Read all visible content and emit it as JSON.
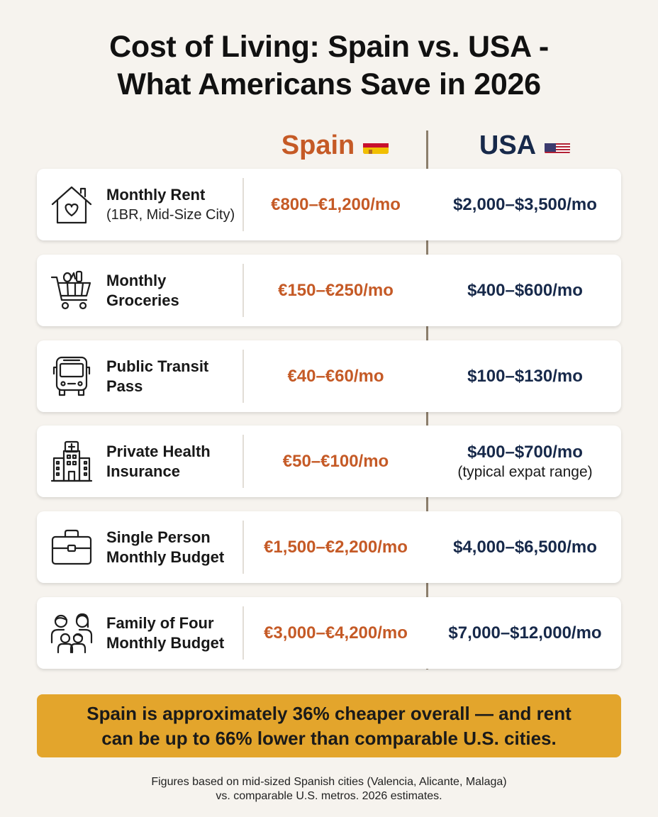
{
  "title": {
    "line1": "Cost of Living: Spain vs. USA -",
    "line2": "What Americans Save in 2026"
  },
  "columns": {
    "spain": "Spain",
    "usa": "USA"
  },
  "rows": [
    {
      "icon": "house-heart-icon",
      "label1": "Monthly Rent",
      "label2": "(1BR, Mid-Size City)",
      "spain": "€800–€1,200/mo",
      "usa": "$2,000–$3,500/mo",
      "usa_note": ""
    },
    {
      "icon": "grocery-cart-icon",
      "label1": "Monthly",
      "label2": "Groceries",
      "spain": "€150–€250/mo",
      "usa": "$400–$600/mo",
      "usa_note": ""
    },
    {
      "icon": "bus-icon",
      "label1": "Public Transit",
      "label2": "Pass",
      "spain": "€40–€60/mo",
      "usa": "$100–$130/mo",
      "usa_note": ""
    },
    {
      "icon": "hospital-icon",
      "label1": "Private Health",
      "label2": "Insurance",
      "spain": "€50–€100/mo",
      "usa": "$400–$700/mo",
      "usa_note": "(typical expat range)"
    },
    {
      "icon": "briefcase-icon",
      "label1": "Single Person",
      "label2": "Monthly Budget",
      "spain": "€1,500–€2,200/mo",
      "usa": "$4,000–$6,500/mo",
      "usa_note": ""
    },
    {
      "icon": "family-icon",
      "label1": "Family of Four",
      "label2": "Monthly Budget",
      "spain": "€3,000–€4,200/mo",
      "usa": "$7,000–$12,000/mo",
      "usa_note": ""
    }
  ],
  "banner": {
    "line1": "Spain is approximately 36% cheaper overall — and rent",
    "line2": "can be up to 66% lower than comparable U.S. cities."
  },
  "footnote": {
    "line1": "Figures based on mid-sized Spanish cities (Valencia, Alicante, Malaga)",
    "line2": "vs. comparable U.S. metros. 2026 estimates."
  },
  "colors": {
    "spain_accent": "#c55a26",
    "usa_accent": "#17294a",
    "banner": "#e3a52c",
    "background": "#f6f3ee"
  }
}
